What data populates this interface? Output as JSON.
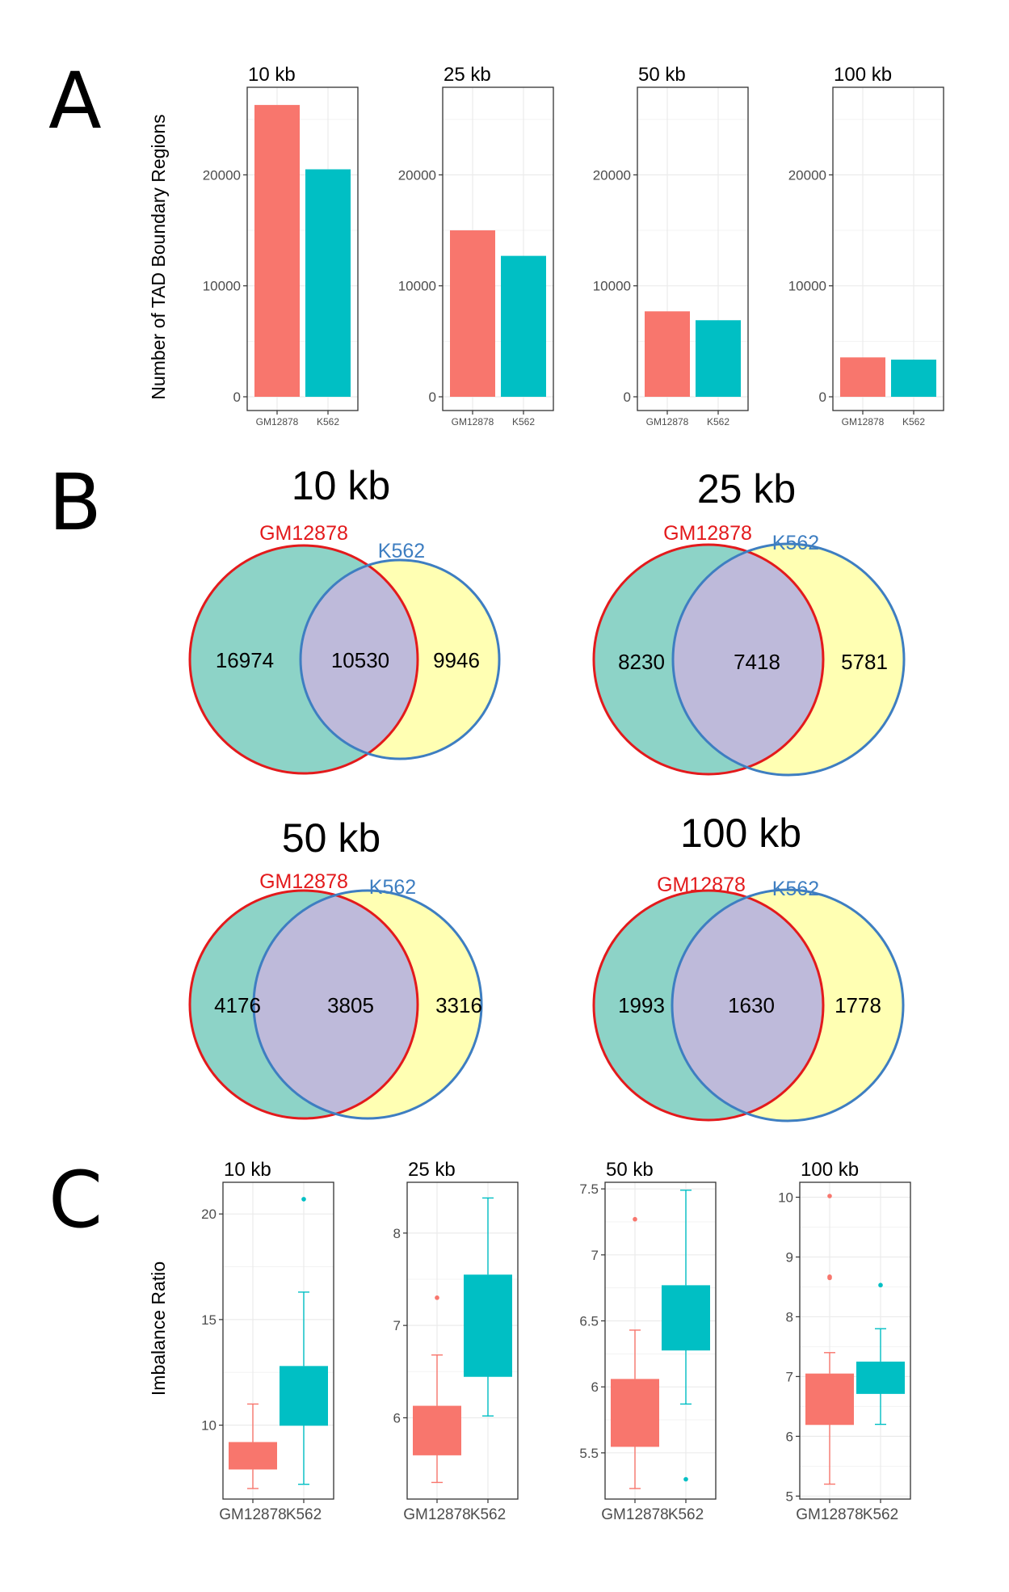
{
  "colors": {
    "gm": "#F8766D",
    "k562": "#00BFC4",
    "venn_left": "#8DD3C7",
    "venn_right": "#FFFFB3",
    "venn_overlap": "#BEBADA",
    "venn_left_border": "#E31A1C",
    "venn_right_border": "#3E7EC1",
    "grid": "#EBEBEB",
    "panel_border": "#333333"
  },
  "panels": {
    "A": "A",
    "B": "B",
    "C": "C"
  },
  "chart_data": [
    {
      "panel": "A",
      "type": "bar",
      "ylabel": "Number of TAD Boundary Regions",
      "ylim": [
        0,
        26000
      ],
      "yticks": [
        0,
        10000,
        20000
      ],
      "categories": [
        "GM12878",
        "K562"
      ],
      "facets": [
        {
          "title": "10 kb",
          "values": [
            26300,
            20500
          ]
        },
        {
          "title": "25 kb",
          "values": [
            15000,
            12700
          ]
        },
        {
          "title": "50 kb",
          "values": [
            7700,
            6900
          ]
        },
        {
          "title": "100 kb",
          "values": [
            3550,
            3350
          ]
        }
      ]
    },
    {
      "panel": "B",
      "type": "venn",
      "set_labels": [
        "GM12878",
        "K562"
      ],
      "diagrams": [
        {
          "title": "10 kb",
          "only_a": "16974",
          "both": "10530",
          "only_b": "9946"
        },
        {
          "title": "25 kb",
          "only_a": "8230",
          "both": "7418",
          "only_b": "5781"
        },
        {
          "title": "50 kb",
          "only_a": "4176",
          "both": "3805",
          "only_b": "3316"
        },
        {
          "title": "100 kb",
          "only_a": "1993",
          "both": "1630",
          "only_b": "1778"
        }
      ]
    },
    {
      "panel": "C",
      "type": "box",
      "ylabel": "Imbalance Ratio",
      "categories": [
        "GM12878",
        "K562"
      ],
      "facets": [
        {
          "title": "10 kb",
          "ylim": [
            6.5,
            21.5
          ],
          "yticks": [
            10,
            15,
            20
          ],
          "boxes": [
            {
              "whisker_low": 7.0,
              "q1": 7.9,
              "median": 8.3,
              "q3": 9.2,
              "whisker_high": 11.0,
              "outliers": []
            },
            {
              "whisker_low": 7.2,
              "q1": 10.0,
              "median": 10.0,
              "q3": 12.8,
              "whisker_high": 16.3,
              "outliers": [
                20.7
              ]
            }
          ]
        },
        {
          "title": "25 kb",
          "ylim": [
            5.12,
            8.55
          ],
          "yticks": [
            6,
            7,
            8
          ],
          "boxes": [
            {
              "whisker_low": 5.3,
              "q1": 5.6,
              "median": 5.6,
              "q3": 6.13,
              "whisker_high": 6.68,
              "outliers": [
                7.3
              ]
            },
            {
              "whisker_low": 6.02,
              "q1": 6.45,
              "median": 6.45,
              "q3": 7.55,
              "whisker_high": 8.38,
              "outliers": []
            }
          ]
        },
        {
          "title": "50 kb",
          "ylim": [
            5.15,
            7.55
          ],
          "yticks": [
            5.5,
            6.0,
            6.5,
            7.0,
            7.5
          ],
          "boxes": [
            {
              "whisker_low": 5.23,
              "q1": 5.55,
              "median": 5.55,
              "q3": 6.06,
              "whisker_high": 6.43,
              "outliers": [
                7.27
              ]
            },
            {
              "whisker_low": 5.87,
              "q1": 6.28,
              "median": 6.28,
              "q3": 6.77,
              "whisker_high": 7.49,
              "outliers": [
                5.3
              ]
            }
          ]
        },
        {
          "title": "100 kb",
          "ylim": [
            4.95,
            10.25
          ],
          "yticks": [
            5,
            6,
            7,
            8,
            9,
            10
          ],
          "boxes": [
            {
              "whisker_low": 5.2,
              "q1": 6.2,
              "median": 6.2,
              "q3": 7.05,
              "whisker_high": 7.4,
              "outliers": [
                8.65,
                8.67,
                10.02
              ]
            },
            {
              "whisker_low": 6.2,
              "q1": 6.72,
              "median": 6.72,
              "q3": 7.25,
              "whisker_high": 7.8,
              "outliers": [
                8.53
              ]
            }
          ]
        }
      ]
    }
  ]
}
